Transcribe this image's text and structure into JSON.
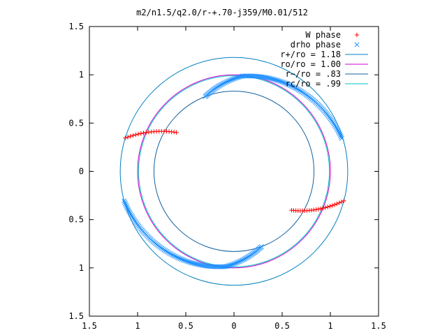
{
  "chart_data": {
    "type": "scatter",
    "title": "m2/n1.5/q2.0/r-+.70-j359/M0.01/512",
    "xlim": [
      -1.5,
      1.5
    ],
    "ylim": [
      -1.5,
      1.5
    ],
    "x_ticks": [
      -1.5,
      -1,
      -0.5,
      0,
      0.5,
      1,
      1.5
    ],
    "y_ticks": [
      -1.5,
      -1,
      -0.5,
      0,
      0.5,
      1,
      1.5
    ],
    "x_tick_labels": [
      "1.5",
      "1",
      "0.5",
      "0",
      "0.5",
      "1",
      "1.5"
    ],
    "y_tick_labels": [
      "1.5",
      "1",
      "0.5",
      "0",
      "0.5",
      "1",
      "1.5"
    ],
    "grid": false,
    "legend_position": "top-right",
    "series": [
      {
        "name": "W phase",
        "kind": "points",
        "marker": "plus",
        "color": "#ff0000",
        "arcs": [
          {
            "r_from": 1.18,
            "r_to": 0.72,
            "theta_from_deg": 163,
            "theta_to_deg": 146
          },
          {
            "r_from": 0.72,
            "r_to": 1.18,
            "theta_from_deg": -34,
            "theta_to_deg": -15
          }
        ]
      },
      {
        "name": "drho phase",
        "kind": "points",
        "marker": "cross",
        "color": "#1e90ff",
        "arcs": [
          {
            "r_from": 0.83,
            "r_to": 0.99,
            "theta_from_deg": 111,
            "theta_to_deg": 85
          },
          {
            "r_from": 0.99,
            "r_to": 1.17,
            "theta_from_deg": 85,
            "theta_to_deg": 17
          },
          {
            "r_from": 1.18,
            "r_to": 0.99,
            "theta_from_deg": 195,
            "theta_to_deg": 265
          },
          {
            "r_from": 0.99,
            "r_to": 0.83,
            "theta_from_deg": 265,
            "theta_to_deg": 290
          }
        ]
      },
      {
        "name": "r+/ro = 1.18",
        "kind": "circle",
        "r": 1.18,
        "color": "#0080c0"
      },
      {
        "name": "ro/ro = 1.00",
        "kind": "circle",
        "r": 1.0,
        "color": "#d000d0"
      },
      {
        "name": "r−/ro = .83",
        "kind": "circle",
        "r": 0.83,
        "color": "#1060a0"
      },
      {
        "name": "rc/ro = .99",
        "kind": "circle",
        "r": 0.99,
        "color": "#00c0c0"
      }
    ]
  }
}
